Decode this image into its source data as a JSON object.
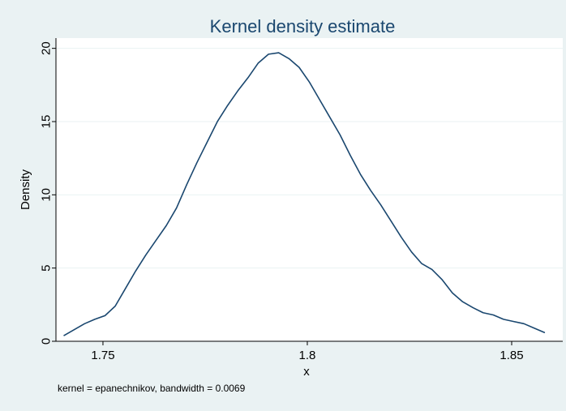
{
  "chart_data": {
    "type": "line",
    "title": "Kernel density estimate",
    "xlabel": "x",
    "ylabel": "Density",
    "note": "kernel = epanechnikov, bandwidth = 0.0069",
    "xlim": [
      1.7385,
      1.8625
    ],
    "ylim": [
      0,
      20.7
    ],
    "x_ticks": [
      1.75,
      1.8,
      1.85
    ],
    "x_tick_labels": [
      "1.75",
      "1.8",
      "1.85"
    ],
    "y_ticks": [
      0,
      5,
      10,
      15,
      20
    ],
    "y_tick_labels": [
      "0",
      "5",
      "10",
      "15",
      "20"
    ],
    "grid": true,
    "legend": "none",
    "colors": {
      "background": "#eaf2f3",
      "plot_area": "#ffffff",
      "line": "#1a476f",
      "title": "#1a476f",
      "grid": "#eaf2f3"
    },
    "series": [
      {
        "x": [
          1.7405,
          1.743,
          1.7455,
          1.748,
          1.7505,
          1.753,
          1.7555,
          1.758,
          1.7605,
          1.763,
          1.7655,
          1.768,
          1.7705,
          1.773,
          1.7755,
          1.778,
          1.7805,
          1.783,
          1.7855,
          1.788,
          1.7905,
          1.793,
          1.7955,
          1.798,
          1.8005,
          1.803,
          1.8055,
          1.808,
          1.8105,
          1.813,
          1.8155,
          1.818,
          1.8205,
          1.823,
          1.8255,
          1.828,
          1.8305,
          1.833,
          1.8355,
          1.838,
          1.8405,
          1.843,
          1.8455,
          1.848,
          1.8505,
          1.853,
          1.8555,
          1.858
        ],
        "values": [
          0.4,
          0.8,
          1.2,
          1.5,
          1.75,
          2.4,
          3.6,
          4.8,
          5.9,
          6.9,
          7.9,
          9.1,
          10.7,
          12.2,
          13.6,
          15.0,
          16.1,
          17.1,
          18.0,
          19.0,
          19.6,
          19.7,
          19.3,
          18.7,
          17.7,
          16.5,
          15.3,
          14.1,
          12.7,
          11.4,
          10.3,
          9.3,
          8.2,
          7.1,
          6.1,
          5.3,
          4.9,
          4.2,
          3.3,
          2.7,
          2.3,
          1.95,
          1.8,
          1.5,
          1.35,
          1.2,
          0.9,
          0.6
        ]
      }
    ]
  }
}
